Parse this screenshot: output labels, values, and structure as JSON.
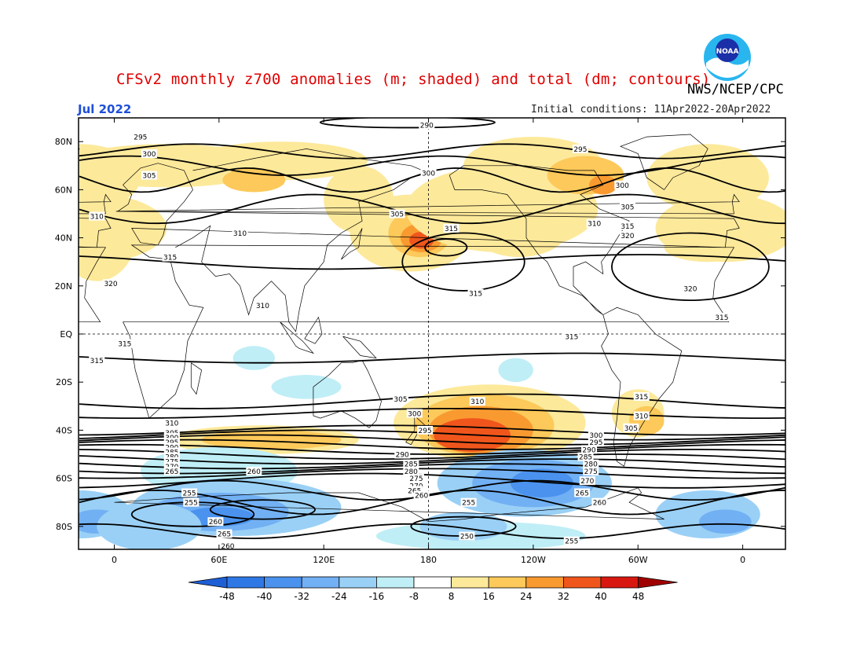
{
  "title": "CFSv2 monthly z700 anomalies (m; shaded) and total (dm; contours)",
  "org": "NWS/NCEP/CPC",
  "month": "Jul 2022",
  "initial_conditions": "Initial conditions: 11Apr2022-20Apr2022",
  "logo_text": "NOAA",
  "lat_labels": [
    "80N",
    "60N",
    "40N",
    "20N",
    "EQ",
    "20S",
    "40S",
    "60S",
    "80S"
  ],
  "lon_labels": [
    "0",
    "60E",
    "120E",
    "180",
    "120W",
    "60W",
    "0"
  ],
  "colorbar": {
    "labels": [
      "-48",
      "-40",
      "-32",
      "-24",
      "-16",
      "-8",
      "8",
      "16",
      "24",
      "32",
      "40",
      "48"
    ],
    "colors": [
      "#1f5fd6",
      "#2e78e6",
      "#4a92ee",
      "#72b0f4",
      "#9ad0f6",
      "#bfeef6",
      "#ffffff",
      "#fde99a",
      "#fcc95a",
      "#f99a30",
      "#f0561c",
      "#d81810",
      "#a00000"
    ]
  },
  "contour_labels": [
    {
      "text": "290",
      "lon": 179,
      "lat": 87
    },
    {
      "text": "295",
      "lon": 15,
      "lat": 82
    },
    {
      "text": "300",
      "lon": 20,
      "lat": 75
    },
    {
      "text": "305",
      "lon": 20,
      "lat": 66
    },
    {
      "text": "300",
      "lon": 180,
      "lat": 67
    },
    {
      "text": "295",
      "lon": 267,
      "lat": 77
    },
    {
      "text": "300",
      "lon": 291,
      "lat": 62
    },
    {
      "text": "305",
      "lon": 294,
      "lat": 53
    },
    {
      "text": "310",
      "lon": -10,
      "lat": 49
    },
    {
      "text": "310",
      "lon": 72,
      "lat": 42
    },
    {
      "text": "305",
      "lon": 162,
      "lat": 50
    },
    {
      "text": "315",
      "lon": 193,
      "lat": 44
    },
    {
      "text": "310",
      "lon": 275,
      "lat": 46
    },
    {
      "text": "315",
      "lon": 294,
      "lat": 45
    },
    {
      "text": "320",
      "lon": 294,
      "lat": 41
    },
    {
      "text": "315",
      "lon": 32,
      "lat": 32
    },
    {
      "text": "320",
      "lon": -2,
      "lat": 21
    },
    {
      "text": "315",
      "lon": 207,
      "lat": 17
    },
    {
      "text": "320",
      "lon": 330,
      "lat": 19
    },
    {
      "text": "310",
      "lon": 85,
      "lat": 12
    },
    {
      "text": "315",
      "lon": 348,
      "lat": 7
    },
    {
      "text": "315",
      "lon": 262,
      "lat": -1
    },
    {
      "text": "315",
      "lon": 6,
      "lat": -4
    },
    {
      "text": "315",
      "lon": -10,
      "lat": -11
    },
    {
      "text": "305",
      "lon": 164,
      "lat": -27
    },
    {
      "text": "310",
      "lon": 208,
      "lat": -28
    },
    {
      "text": "315",
      "lon": 302,
      "lat": -26
    },
    {
      "text": "300",
      "lon": 172,
      "lat": -33
    },
    {
      "text": "310",
      "lon": 302,
      "lat": -34
    },
    {
      "text": "310",
      "lon": 33,
      "lat": -37
    },
    {
      "text": "305",
      "lon": 296,
      "lat": -39
    },
    {
      "text": "305",
      "lon": 33,
      "lat": -41
    },
    {
      "text": "300",
      "lon": 33,
      "lat": -43
    },
    {
      "text": "295",
      "lon": 178,
      "lat": -40
    },
    {
      "text": "300",
      "lon": 276,
      "lat": -42
    },
    {
      "text": "295",
      "lon": 33,
      "lat": -45
    },
    {
      "text": "295",
      "lon": 276,
      "lat": -45
    },
    {
      "text": "290",
      "lon": 33,
      "lat": -47
    },
    {
      "text": "290",
      "lon": 165,
      "lat": -50
    },
    {
      "text": "290",
      "lon": 272,
      "lat": -48
    },
    {
      "text": "285",
      "lon": 33,
      "lat": -49
    },
    {
      "text": "280",
      "lon": 33,
      "lat": -51
    },
    {
      "text": "285",
      "lon": 270,
      "lat": -51
    },
    {
      "text": "275",
      "lon": 33,
      "lat": -53
    },
    {
      "text": "270",
      "lon": 33,
      "lat": -55
    },
    {
      "text": "285",
      "lon": 170,
      "lat": -54
    },
    {
      "text": "280",
      "lon": 273,
      "lat": -54
    },
    {
      "text": "280",
      "lon": 170,
      "lat": -57
    },
    {
      "text": "275",
      "lon": 273,
      "lat": -57
    },
    {
      "text": "265",
      "lon": 33,
      "lat": -57
    },
    {
      "text": "260",
      "lon": 80,
      "lat": -57
    },
    {
      "text": "275",
      "lon": 173,
      "lat": -60
    },
    {
      "text": "270",
      "lon": 271,
      "lat": -61
    },
    {
      "text": "270",
      "lon": 173,
      "lat": -63
    },
    {
      "text": "265",
      "lon": 172,
      "lat": -65
    },
    {
      "text": "265",
      "lon": 268,
      "lat": -66
    },
    {
      "text": "255",
      "lon": 43,
      "lat": -66
    },
    {
      "text": "260",
      "lon": 176,
      "lat": -67
    },
    {
      "text": "255",
      "lon": 44,
      "lat": -70
    },
    {
      "text": "255",
      "lon": 203,
      "lat": -70
    },
    {
      "text": "260",
      "lon": 278,
      "lat": -70
    },
    {
      "text": "260",
      "lon": 58,
      "lat": -78
    },
    {
      "text": "265",
      "lon": 63,
      "lat": -83
    },
    {
      "text": "250",
      "lon": 202,
      "lat": -84
    },
    {
      "text": "255",
      "lon": 262,
      "lat": -86
    },
    {
      "text": "260",
      "lon": 65,
      "lat": -88
    }
  ]
}
